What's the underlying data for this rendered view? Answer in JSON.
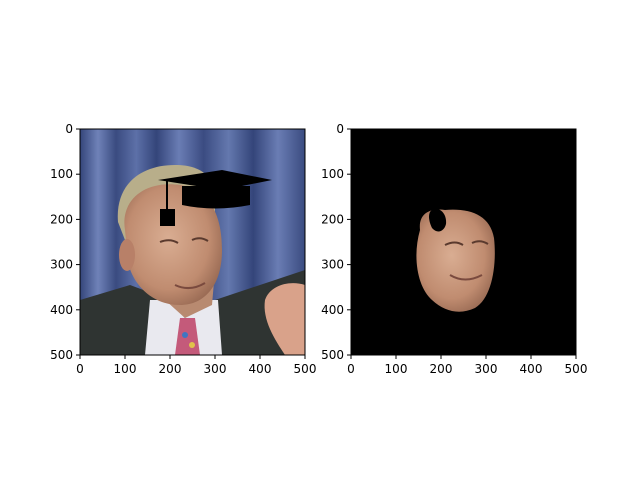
{
  "figure": {
    "panels": [
      {
        "name": "original-with-cap",
        "content": "photograph of an older man in a suit with a black graduation cap drawn on his head, blue curtain background",
        "x_ticks": [
          "0",
          "100",
          "200",
          "300",
          "400",
          "500"
        ],
        "y_ticks": [
          "0",
          "100",
          "200",
          "300",
          "400",
          "500"
        ]
      },
      {
        "name": "face-mask",
        "content": "face region segmented on black background, with a black hole at upper-left of face",
        "x_ticks": [
          "0",
          "100",
          "200",
          "300",
          "400",
          "500"
        ],
        "y_ticks": [
          "0",
          "100",
          "200",
          "300",
          "400",
          "500"
        ]
      }
    ],
    "colors": {
      "curtain": "#4f6196",
      "curtain_dark": "#34457a",
      "suit": "#2f3432",
      "shirt": "#e9e9ef",
      "skin": "#c9987c",
      "hair": "#b8ae8a",
      "cap": "#000000",
      "mask_bg": "#000000"
    }
  }
}
